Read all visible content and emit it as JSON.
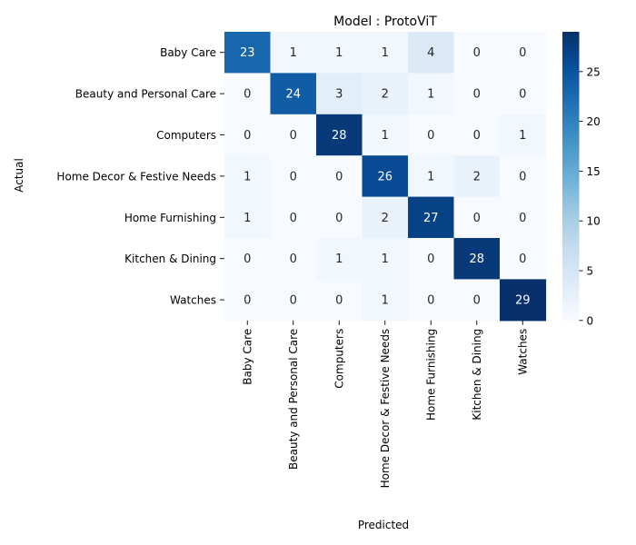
{
  "chart_data": {
    "type": "heatmap",
    "title": "Model : ProtoViT",
    "xlabel": "Predicted",
    "ylabel": "Actual",
    "x_categories": [
      "Baby Care",
      "Beauty and Personal Care",
      "Computers",
      "Home Decor & Festive Needs",
      "Home Furnishing",
      "Kitchen & Dining",
      "Watches"
    ],
    "y_categories": [
      "Baby Care",
      "Beauty and Personal Care",
      "Computers",
      "Home Decor & Festive Needs",
      "Home Furnishing",
      "Kitchen & Dining",
      "Watches"
    ],
    "values": [
      [
        23,
        1,
        1,
        1,
        4,
        0,
        0
      ],
      [
        0,
        24,
        3,
        2,
        1,
        0,
        0
      ],
      [
        0,
        0,
        28,
        1,
        0,
        0,
        1
      ],
      [
        1,
        0,
        0,
        26,
        1,
        2,
        0
      ],
      [
        1,
        0,
        0,
        2,
        27,
        0,
        0
      ],
      [
        0,
        0,
        1,
        1,
        0,
        28,
        0
      ],
      [
        0,
        0,
        0,
        1,
        0,
        0,
        29
      ]
    ],
    "colorscale": "Blues",
    "vmin": 0,
    "vmax": 29,
    "colorbar_ticks": [
      0,
      5,
      10,
      15,
      20,
      25
    ]
  }
}
